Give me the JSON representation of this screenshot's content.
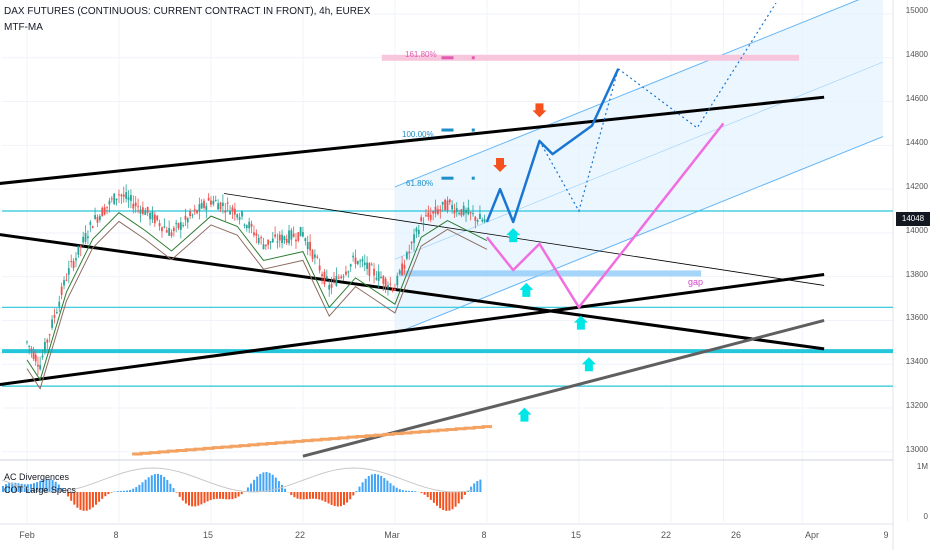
{
  "header": {
    "title": "DAX FUTURES (CONTINUOUS: CURRENT CONTRACT IN FRONT), 4h, EUREX",
    "indicator": "MTF-MA"
  },
  "price_axis": {
    "labels": [
      "15000",
      "14800",
      "14600",
      "14400",
      "14200",
      "14000",
      "13800",
      "13600",
      "13400",
      "13200",
      "13000"
    ],
    "current_price": "14048"
  },
  "volume_axis": {
    "labels": [
      "1M",
      "0"
    ]
  },
  "time_axis": {
    "labels": [
      "Feb",
      "8",
      "15",
      "22",
      "Mar",
      "8",
      "15",
      "22",
      "26",
      "Apr",
      "9"
    ]
  },
  "fib_levels": [
    {
      "label": "161.80%",
      "color": "#e05ab0"
    },
    {
      "label": "100.00%",
      "color": "#1e8fc8"
    },
    {
      "label": "61.80%",
      "color": "#1e8fc8"
    }
  ],
  "annotations": {
    "gap": "gap"
  },
  "sub_indicators": [
    "AC Divergences",
    "COT Large Specs"
  ],
  "colors": {
    "up_candle": "#26a69a",
    "down_candle": "#ef5350",
    "channel_fill": "#e3f2fd",
    "channel_line": "#64b5f6",
    "horizontal_level": "#26c6da",
    "projection_blue": "#1976d2",
    "projection_pink": "#f06fe0",
    "arrow_down": "#f4511e",
    "arrow_up": "#00e5e5"
  },
  "chart_data": {
    "type": "line",
    "title": "DAX FUTURES (CONTINUOUS: CURRENT CONTRACT IN FRONT), 4h, EUREX",
    "ylim": [
      12950,
      15050
    ],
    "y_ticks": [
      13000,
      13200,
      13400,
      13600,
      13800,
      14000,
      14200,
      14400,
      14600,
      14800,
      15000
    ],
    "price_path": [
      {
        "x": "Feb 1",
        "y": 13500
      },
      {
        "x": "Feb 2",
        "y": 13400
      },
      {
        "x": "Feb 4",
        "y": 13800
      },
      {
        "x": "Feb 6",
        "y": 14050
      },
      {
        "x": "Feb 8",
        "y": 14180
      },
      {
        "x": "Feb 10",
        "y": 14100
      },
      {
        "x": "Feb 12",
        "y": 14000
      },
      {
        "x": "Feb 15",
        "y": 14150
      },
      {
        "x": "Feb 17",
        "y": 14100
      },
      {
        "x": "Feb 19",
        "y": 13950
      },
      {
        "x": "Feb 22",
        "y": 14000
      },
      {
        "x": "Feb 24",
        "y": 13750
      },
      {
        "x": "Feb 26",
        "y": 13880
      },
      {
        "x": "Mar 1",
        "y": 13750
      },
      {
        "x": "Mar 3",
        "y": 14050
      },
      {
        "x": "Mar 5",
        "y": 14130
      },
      {
        "x": "Mar 8",
        "y": 14048
      }
    ],
    "horizontal_levels": [
      14100,
      13660,
      13460,
      13300
    ],
    "fib_levels": [
      {
        "label": "161.80%",
        "y": 14800
      },
      {
        "label": "100.00%",
        "y": 14470
      },
      {
        "label": "61.80%",
        "y": 14250
      }
    ],
    "projection_blue": [
      {
        "x": "Mar 8",
        "y": 14050
      },
      {
        "x": "Mar 9",
        "y": 14200
      },
      {
        "x": "Mar 10",
        "y": 14050
      },
      {
        "x": "Mar 12",
        "y": 14420
      },
      {
        "x": "Mar 13",
        "y": 14360
      },
      {
        "x": "Mar 16",
        "y": 14490
      },
      {
        "x": "Mar 18",
        "y": 14750
      }
    ],
    "projection_pink": [
      {
        "x": "Mar 8",
        "y": 13980
      },
      {
        "x": "Mar 10",
        "y": 13830
      },
      {
        "x": "Mar 12",
        "y": 13950
      },
      {
        "x": "Mar 15",
        "y": 13660
      },
      {
        "x": "Mar 26",
        "y": 14500
      }
    ],
    "trend_lines": [
      {
        "from": {
          "x": "Jan 29",
          "y": 14000
        },
        "to": {
          "x": "Mar 31",
          "y": 13470
        },
        "style": "thick-black"
      },
      {
        "from": {
          "x": "Jan 29",
          "y": 14220
        },
        "to": {
          "x": "Mar 31",
          "y": 14620
        },
        "style": "thick-black"
      },
      {
        "from": {
          "x": "Jan 29",
          "y": 13300
        },
        "to": {
          "x": "Mar 31",
          "y": 13810
        },
        "style": "thick-black"
      },
      {
        "from": {
          "x": "Feb 22",
          "y": 12980
        },
        "to": {
          "x": "Mar 31",
          "y": 13600
        },
        "style": "thick-gray"
      },
      {
        "from": {
          "x": "Feb 16",
          "y": 14180
        },
        "to": {
          "x": "Mar 31",
          "y": 13760
        },
        "style": "thin-black"
      }
    ]
  }
}
